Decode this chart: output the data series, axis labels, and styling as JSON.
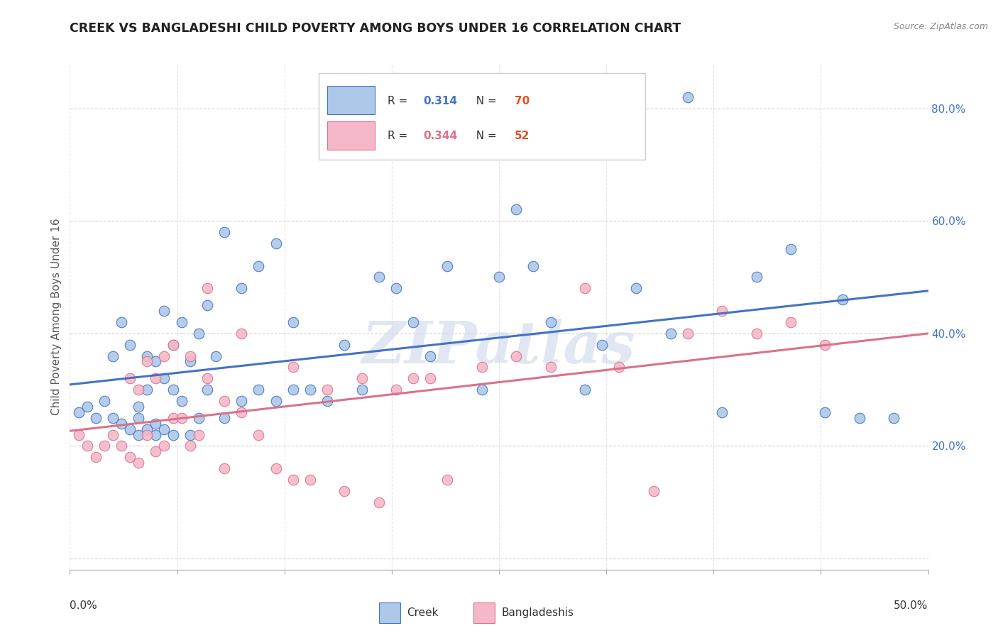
{
  "title": "CREEK VS BANGLADESHI CHILD POVERTY AMONG BOYS UNDER 16 CORRELATION CHART",
  "source": "Source: ZipAtlas.com",
  "ylabel": "Child Poverty Among Boys Under 16",
  "xlim": [
    0.0,
    0.5
  ],
  "ylim": [
    -0.02,
    0.88
  ],
  "yticks": [
    0.0,
    0.2,
    0.4,
    0.6,
    0.8
  ],
  "ytick_labels": [
    "",
    "20.0%",
    "40.0%",
    "60.0%",
    "80.0%"
  ],
  "legend_creek_R": "0.314",
  "legend_creek_N": "70",
  "legend_bang_R": "0.344",
  "legend_bang_N": "52",
  "creek_color": "#adc8e8",
  "creek_line_color": "#4472c4",
  "bang_color": "#f5b8c8",
  "bang_line_color": "#d9728a",
  "watermark_color": "#ccd8ea",
  "creek_x": [
    0.005,
    0.01,
    0.015,
    0.02,
    0.025,
    0.025,
    0.03,
    0.03,
    0.035,
    0.035,
    0.04,
    0.04,
    0.04,
    0.045,
    0.045,
    0.045,
    0.05,
    0.05,
    0.05,
    0.055,
    0.055,
    0.055,
    0.06,
    0.06,
    0.06,
    0.065,
    0.065,
    0.07,
    0.07,
    0.075,
    0.075,
    0.08,
    0.08,
    0.085,
    0.09,
    0.09,
    0.1,
    0.1,
    0.11,
    0.11,
    0.12,
    0.12,
    0.13,
    0.13,
    0.14,
    0.15,
    0.16,
    0.17,
    0.18,
    0.19,
    0.2,
    0.21,
    0.22,
    0.24,
    0.25,
    0.26,
    0.27,
    0.28,
    0.3,
    0.31,
    0.33,
    0.35,
    0.36,
    0.38,
    0.4,
    0.42,
    0.44,
    0.45,
    0.46,
    0.48
  ],
  "creek_y": [
    0.26,
    0.27,
    0.25,
    0.28,
    0.25,
    0.36,
    0.24,
    0.42,
    0.23,
    0.38,
    0.22,
    0.25,
    0.27,
    0.23,
    0.3,
    0.36,
    0.22,
    0.24,
    0.35,
    0.23,
    0.32,
    0.44,
    0.22,
    0.3,
    0.38,
    0.28,
    0.42,
    0.22,
    0.35,
    0.25,
    0.4,
    0.3,
    0.45,
    0.36,
    0.25,
    0.58,
    0.28,
    0.48,
    0.3,
    0.52,
    0.28,
    0.56,
    0.3,
    0.42,
    0.3,
    0.28,
    0.38,
    0.3,
    0.5,
    0.48,
    0.42,
    0.36,
    0.52,
    0.3,
    0.5,
    0.62,
    0.52,
    0.42,
    0.3,
    0.38,
    0.48,
    0.4,
    0.82,
    0.26,
    0.5,
    0.55,
    0.26,
    0.46,
    0.25,
    0.25
  ],
  "bang_x": [
    0.005,
    0.01,
    0.015,
    0.02,
    0.025,
    0.03,
    0.035,
    0.035,
    0.04,
    0.04,
    0.045,
    0.045,
    0.05,
    0.05,
    0.055,
    0.055,
    0.06,
    0.06,
    0.065,
    0.07,
    0.07,
    0.075,
    0.08,
    0.08,
    0.09,
    0.09,
    0.1,
    0.1,
    0.11,
    0.12,
    0.13,
    0.13,
    0.14,
    0.15,
    0.16,
    0.17,
    0.18,
    0.19,
    0.2,
    0.21,
    0.22,
    0.24,
    0.26,
    0.28,
    0.3,
    0.32,
    0.34,
    0.36,
    0.38,
    0.4,
    0.42,
    0.44
  ],
  "bang_y": [
    0.22,
    0.2,
    0.18,
    0.2,
    0.22,
    0.2,
    0.18,
    0.32,
    0.17,
    0.3,
    0.22,
    0.35,
    0.19,
    0.32,
    0.2,
    0.36,
    0.25,
    0.38,
    0.25,
    0.2,
    0.36,
    0.22,
    0.32,
    0.48,
    0.28,
    0.16,
    0.26,
    0.4,
    0.22,
    0.16,
    0.14,
    0.34,
    0.14,
    0.3,
    0.12,
    0.32,
    0.1,
    0.3,
    0.32,
    0.32,
    0.14,
    0.34,
    0.36,
    0.34,
    0.48,
    0.34,
    0.12,
    0.4,
    0.44,
    0.4,
    0.42,
    0.38
  ]
}
